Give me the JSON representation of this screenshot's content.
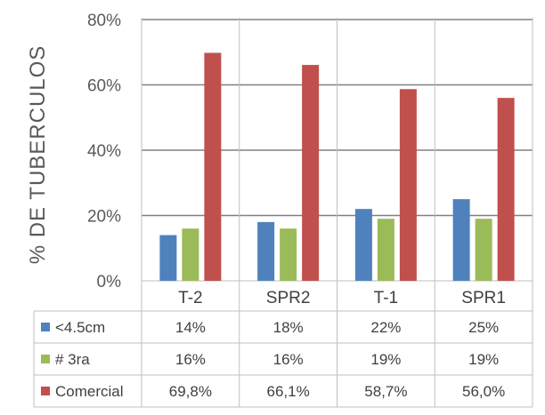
{
  "chart_data": {
    "type": "bar",
    "ylabel": "% DE TUBERCULOS",
    "ylim": [
      0,
      80
    ],
    "yticks": [
      0,
      20,
      40,
      60,
      80
    ],
    "ytick_labels": [
      "0%",
      "20%",
      "40%",
      "60%",
      "80%"
    ],
    "grid": true,
    "legend": "data-table",
    "categories": [
      "T-2",
      "SPR2",
      "T-1",
      "SPR1"
    ],
    "series": [
      {
        "name": "<4.5cm",
        "color": "#4f81bd",
        "values": [
          14,
          18,
          22,
          25
        ],
        "labels": [
          "14%",
          "18%",
          "22%",
          "25%"
        ]
      },
      {
        "name": "# 3ra",
        "color": "#9bbb59",
        "values": [
          16,
          16,
          19,
          19
        ],
        "labels": [
          "16%",
          "16%",
          "19%",
          "19%"
        ]
      },
      {
        "name": "Comercial",
        "color": "#c0504d",
        "values": [
          69.8,
          66.1,
          58.7,
          56.0
        ],
        "labels": [
          "69,8%",
          "66,1%",
          "58,7%",
          "56,0%"
        ]
      }
    ]
  }
}
